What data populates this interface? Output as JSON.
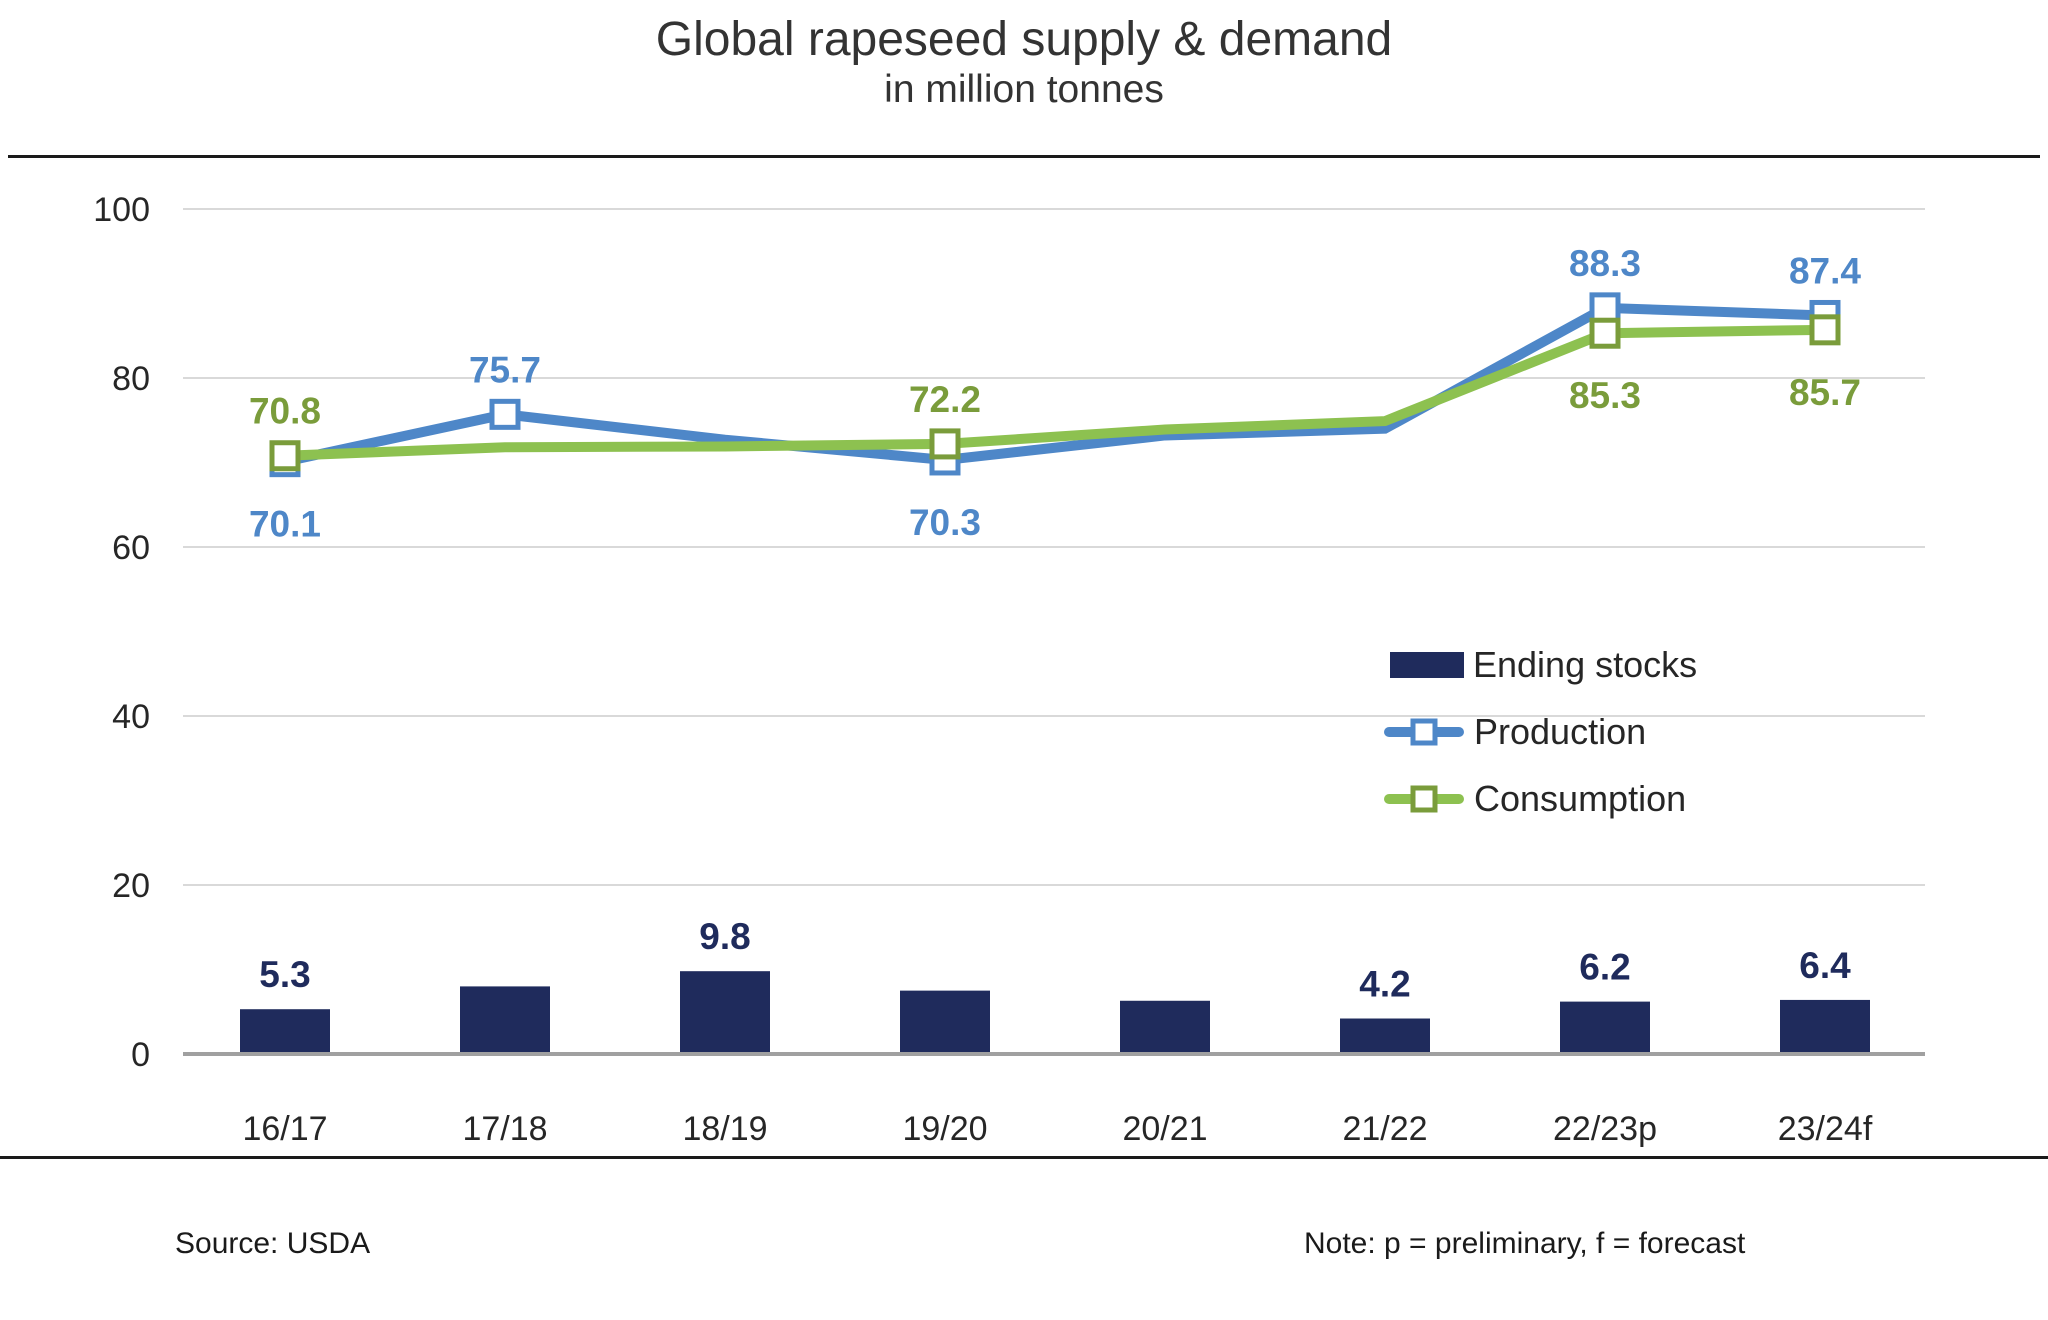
{
  "title": "Global rapeseed supply & demand",
  "subtitle": "in million tonnes",
  "footer": {
    "source": "Source: USDA",
    "note": "Note: p = preliminary, f = forecast"
  },
  "colors": {
    "navy": "#1f2b5c",
    "blue": "#4e87c8",
    "green": "#8dc150",
    "olive": "#7a9c3b",
    "text": "#262626",
    "grid": "#d9d9d9",
    "axis": "#a0a0a0"
  },
  "legend": {
    "position": "middle-right",
    "items": [
      {
        "label": "Ending stocks",
        "swatch": "bar-navy"
      },
      {
        "label": "Production",
        "swatch": "line-square-blue"
      },
      {
        "label": "Consumption",
        "swatch": "line-square-green"
      }
    ]
  },
  "chart_data": {
    "type": "combo",
    "categories": [
      "16/17",
      "17/18",
      "18/19",
      "19/20",
      "20/21",
      "21/22",
      "22/23p",
      "23/24f"
    ],
    "y_axis": {
      "min": 0,
      "max": 100,
      "ticks": [
        0,
        20,
        40,
        60,
        80,
        100
      ],
      "gridlines": true
    },
    "series": [
      {
        "name": "Ending stocks",
        "type": "bar",
        "color_key": "navy",
        "label_key": "navy",
        "values": [
          5.3,
          8.0,
          9.8,
          7.5,
          6.3,
          4.2,
          6.2,
          6.4
        ],
        "labels": [
          "5.3",
          null,
          "9.8",
          null,
          null,
          "4.2",
          "6.2",
          "6.4"
        ]
      },
      {
        "name": "Production",
        "type": "line",
        "color_key": "blue",
        "marker_key": "blue",
        "label_key": "blue",
        "values": [
          70.1,
          75.7,
          72.7,
          70.3,
          73.2,
          74.0,
          88.3,
          87.4
        ],
        "labels": [
          "70.1",
          "75.7",
          null,
          "70.3",
          null,
          null,
          "88.3",
          "87.4"
        ],
        "label_sides": [
          "below",
          "above",
          null,
          "below",
          null,
          null,
          "above",
          "above"
        ]
      },
      {
        "name": "Consumption",
        "type": "line",
        "color_key": "green",
        "marker_key": "olive",
        "label_key": "olive",
        "values": [
          70.8,
          71.8,
          71.9,
          72.2,
          73.9,
          74.9,
          85.3,
          85.7
        ],
        "labels": [
          "70.8",
          null,
          null,
          "72.2",
          null,
          null,
          "85.3",
          "85.7"
        ],
        "label_sides": [
          "above",
          null,
          null,
          "above",
          null,
          null,
          "below",
          "below"
        ]
      }
    ]
  }
}
